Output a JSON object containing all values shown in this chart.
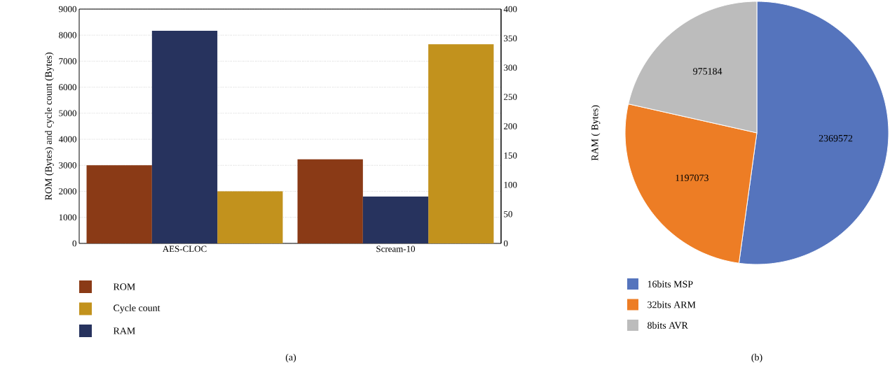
{
  "chart_data": [
    {
      "type": "bar",
      "categories": [
        "AES-CLOC",
        "Scream-10"
      ],
      "ylabel": "ROM (Bytes) and cycle count (Bytes)",
      "series": [
        {
          "name": "ROM",
          "color": "#8a3a16",
          "values": [
            3000,
            3230
          ]
        },
        {
          "name": "RAM",
          "color": "#27335e",
          "values": [
            363,
            80
          ],
          "axis": "y2"
        },
        {
          "name": "Cycle count",
          "color": "#c2921d",
          "values": [
            2000,
            7650
          ]
        }
      ],
      "ylim": [
        0,
        9000
      ],
      "yticks": [
        0,
        1000,
        2000,
        3000,
        4000,
        5000,
        6000,
        7000,
        8000,
        9000
      ],
      "y2lim": [
        0,
        400
      ],
      "y2ticks": [
        0,
        50,
        100,
        150,
        200,
        250,
        300,
        350,
        400
      ],
      "grid": "y",
      "legend": "bottom",
      "annotations": [
        "(a)"
      ]
    },
    {
      "type": "pie",
      "ylabel": "RAM ( Bytes)",
      "categories": [
        "16bits MSP",
        "32bits ARM",
        "8bits AVR"
      ],
      "values": [
        2369572,
        1197073,
        975184
      ],
      "colors": [
        "#5574bd",
        "#ed7d25",
        "#bcbcbc"
      ],
      "data_labels": true,
      "legend": "bottom",
      "annotations": [
        "(b)"
      ]
    }
  ]
}
